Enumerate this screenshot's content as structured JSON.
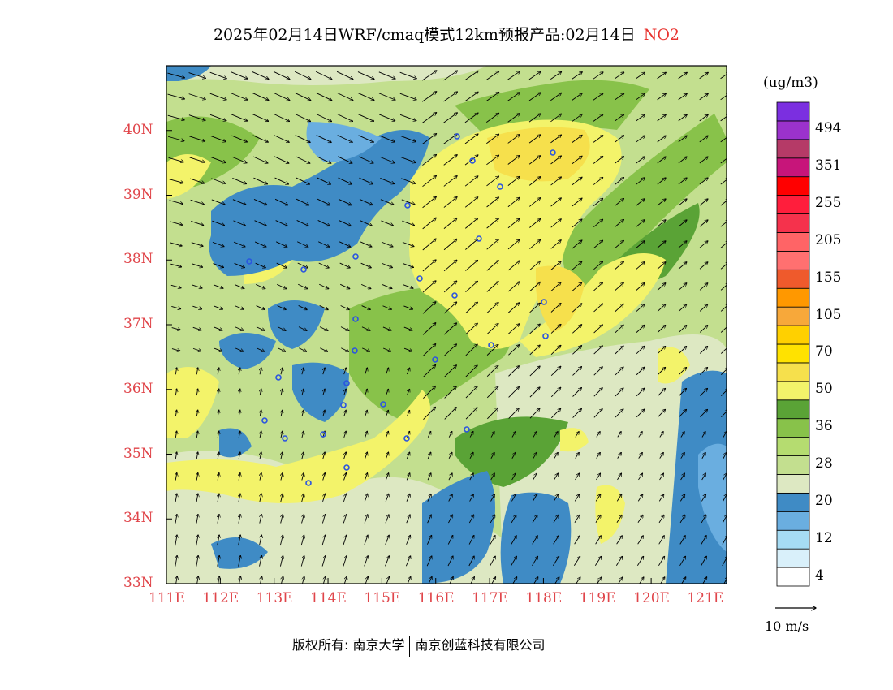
{
  "title": {
    "text": "2025年02月14日WRF/cmaq模式12km预报产品:02月14日",
    "species": "NO2",
    "species_color": "#e8332f"
  },
  "map": {
    "lon_range": [
      111,
      121.4
    ],
    "lat_range": [
      33,
      41
    ],
    "lon_ticks": [
      "111E",
      "112E",
      "113E",
      "114E",
      "115E",
      "116E",
      "117E",
      "118E",
      "119E",
      "120E",
      "121E"
    ],
    "lat_ticks": [
      "33N",
      "34N",
      "35N",
      "36N",
      "37N",
      "38N",
      "39N",
      "40N"
    ],
    "label_color": "#e0454a",
    "station_color": "#2a54e0"
  },
  "colorbar": {
    "unit": "(ug/m3)",
    "levels": [
      {
        "label": "4",
        "color": "#ffffff"
      },
      {
        "label": "",
        "color": "#d9f0fa"
      },
      {
        "label": "12",
        "color": "#a6dcf4"
      },
      {
        "label": "",
        "color": "#6aaee0"
      },
      {
        "label": "20",
        "color": "#3f8bc5"
      },
      {
        "label": "",
        "color": "#dde8c2"
      },
      {
        "label": "28",
        "color": "#c3df8f"
      },
      {
        "label": "",
        "color": "#b5dc70"
      },
      {
        "label": "36",
        "color": "#88c24a"
      },
      {
        "label": "",
        "color": "#5aa336"
      },
      {
        "label": "50",
        "color": "#f3f36a"
      },
      {
        "label": "",
        "color": "#f6e04c"
      },
      {
        "label": "70",
        "color": "#ffe200"
      },
      {
        "label": "",
        "color": "#ffd000"
      },
      {
        "label": "105",
        "color": "#f7a83a"
      },
      {
        "label": "",
        "color": "#ff9800"
      },
      {
        "label": "155",
        "color": "#ef5a2c"
      },
      {
        "label": "",
        "color": "#ff7070"
      },
      {
        "label": "205",
        "color": "#ff6466"
      },
      {
        "label": "",
        "color": "#f5324c"
      },
      {
        "label": "255",
        "color": "#ff1e3c"
      },
      {
        "label": "",
        "color": "#ff0000"
      },
      {
        "label": "351",
        "color": "#c7157a"
      },
      {
        "label": "",
        "color": "#b53a67"
      },
      {
        "label": "494",
        "color": "#9b32cc"
      },
      {
        "label": "",
        "color": "#7b2fe0"
      }
    ]
  },
  "wind_reference": "10 m/s",
  "credit": {
    "left": "版权所有: 南京大学",
    "right": "南京创蓝科技有限公司"
  }
}
